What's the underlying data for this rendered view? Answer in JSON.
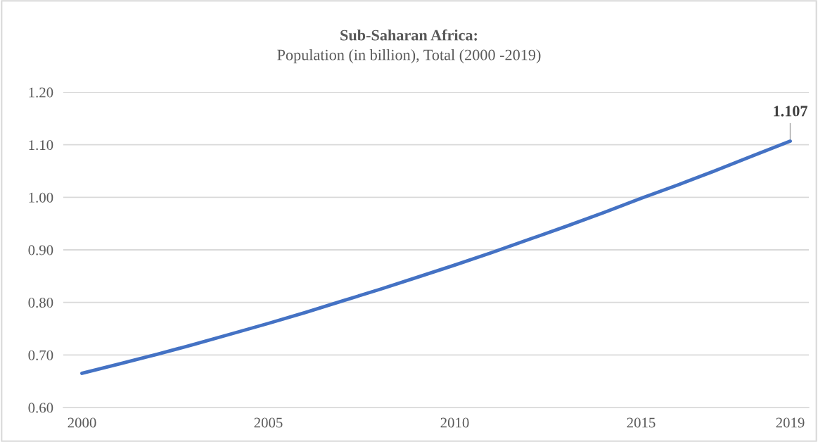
{
  "chart_data": {
    "type": "line",
    "title": "Sub-Saharan Africa:",
    "subtitle": "Population (in billion), Total (2000 -2019)",
    "x": [
      2000,
      2001,
      2002,
      2003,
      2004,
      2005,
      2006,
      2007,
      2008,
      2009,
      2010,
      2011,
      2012,
      2013,
      2014,
      2015,
      2016,
      2017,
      2018,
      2019
    ],
    "series": [
      {
        "color": "#4472c4",
        "values": [
          0.665,
          0.683,
          0.701,
          0.72,
          0.74,
          0.76,
          0.781,
          0.803,
          0.825,
          0.848,
          0.871,
          0.895,
          0.92,
          0.945,
          0.971,
          0.998,
          1.024,
          1.051,
          1.079,
          1.107
        ]
      }
    ],
    "xlim": [
      1999.5,
      2019.5
    ],
    "xticks": [
      2000,
      2005,
      2010,
      2015,
      2019
    ],
    "ylim": [
      0.6,
      1.2
    ],
    "yticks": [
      {
        "value": 0.6,
        "label": "0.60"
      },
      {
        "value": 0.7,
        "label": "0.70"
      },
      {
        "value": 0.8,
        "label": "0.80"
      },
      {
        "value": 0.9,
        "label": "0.90"
      },
      {
        "value": 1.0,
        "label": "1.00"
      },
      {
        "value": 1.1,
        "label": "1.10"
      },
      {
        "value": 1.2,
        "label": "1.20"
      }
    ],
    "annotations": [
      {
        "text": "1.107",
        "x": 2019,
        "y": 1.107
      }
    ],
    "grid": "y",
    "legend": false,
    "marker": "none",
    "line_style": "solid"
  }
}
